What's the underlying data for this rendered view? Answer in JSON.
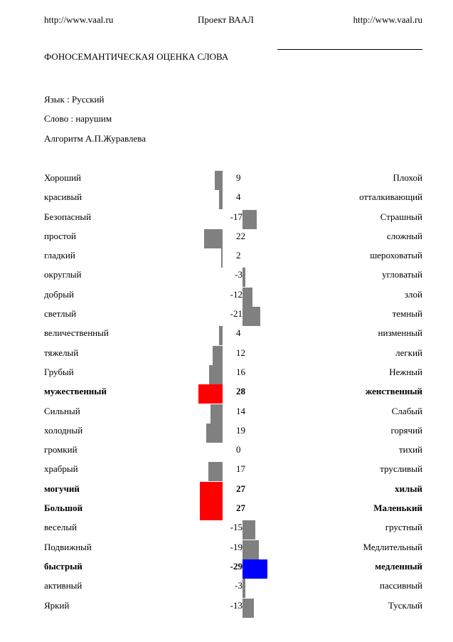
{
  "header": {
    "left_url": "http://www.vaal.ru",
    "center_title": "Проект ВААЛ",
    "right_url": "http://www.vaal.ru"
  },
  "page_title": "ФОНОСЕМАНТИЧЕСКАЯ ОЦЕНКА СЛОВА",
  "meta": {
    "language": "Язык  : Русский",
    "word": "Слово : нарушим",
    "algorithm": "Алгоритм А.П.Журавлева"
  },
  "colors": {
    "gray": "#808080",
    "red": "#ff0000",
    "blue": "#0000ff"
  },
  "scales": [
    {
      "left": "Хороший",
      "value": 9,
      "right": "Плохой",
      "highlight": "gray",
      "bold": false
    },
    {
      "left": "красивый",
      "value": 4,
      "right": "отталкивающий",
      "highlight": "gray",
      "bold": false
    },
    {
      "left": "Безопасный",
      "value": -17,
      "right": "Страшный",
      "highlight": "gray",
      "bold": false
    },
    {
      "left": "простой",
      "value": 22,
      "right": "сложный",
      "highlight": "gray",
      "bold": false
    },
    {
      "left": "гладкий",
      "value": 2,
      "right": "шероховатый",
      "highlight": "gray",
      "bold": false
    },
    {
      "left": "округлый",
      "value": -3,
      "right": "угловатый",
      "highlight": "gray",
      "bold": false
    },
    {
      "left": "добрый",
      "value": -12,
      "right": "злой",
      "highlight": "gray",
      "bold": false
    },
    {
      "left": "светлый",
      "value": -21,
      "right": "темный",
      "highlight": "gray",
      "bold": false
    },
    {
      "left": "величественный",
      "value": 4,
      "right": "низменный",
      "highlight": "gray",
      "bold": false
    },
    {
      "left": "тяжелый",
      "value": 12,
      "right": "легкий",
      "highlight": "gray",
      "bold": false
    },
    {
      "left": "Грубый",
      "value": 16,
      "right": "Нежный",
      "highlight": "gray",
      "bold": false
    },
    {
      "left": "мужественный",
      "value": 28,
      "right": "женственный",
      "highlight": "red",
      "bold": true
    },
    {
      "left": "Сильный",
      "value": 14,
      "right": "Слабый",
      "highlight": "gray",
      "bold": false
    },
    {
      "left": "холодный",
      "value": 19,
      "right": "горячий",
      "highlight": "gray",
      "bold": false
    },
    {
      "left": "громкий",
      "value": 0,
      "right": "тихий",
      "highlight": "gray",
      "bold": false
    },
    {
      "left": "храбрый",
      "value": 17,
      "right": "трусливый",
      "highlight": "gray",
      "bold": false
    },
    {
      "left": "могучий",
      "value": 27,
      "right": "хилый",
      "highlight": "red",
      "bold": true
    },
    {
      "left": "Большой",
      "value": 27,
      "right": "Маленький",
      "highlight": "red",
      "bold": true
    },
    {
      "left": "веселый",
      "value": -15,
      "right": "грустный",
      "highlight": "gray",
      "bold": false
    },
    {
      "left": "Подвижный",
      "value": -19,
      "right": "Медлительный",
      "highlight": "gray",
      "bold": false
    },
    {
      "left": "быстрый",
      "value": -29,
      "right": "медленный",
      "highlight": "blue",
      "bold": true
    },
    {
      "left": "активный",
      "value": -3,
      "right": "пассивный",
      "highlight": "gray",
      "bold": false
    },
    {
      "left": "Яркий",
      "value": -13,
      "right": "Тусклый",
      "highlight": "gray",
      "bold": false
    }
  ]
}
